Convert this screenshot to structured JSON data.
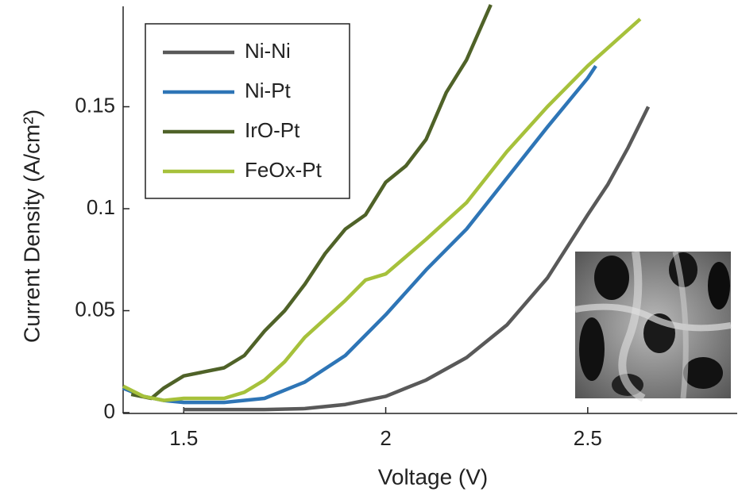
{
  "chart_data": {
    "type": "line",
    "xlabel": "Voltage (V)",
    "ylabel": "Current Density (A/cm²)",
    "xlim": [
      1.35,
      2.87
    ],
    "ylim": [
      0,
      0.2
    ],
    "xticks": [
      1.5,
      2,
      2.5
    ],
    "yticks": [
      0,
      0.05,
      0.1,
      0.15
    ],
    "legend": "upper left",
    "series": [
      {
        "name": "Ni-Ni",
        "color": "#595959",
        "x": [
          1.5,
          1.6,
          1.7,
          1.8,
          1.9,
          2.0,
          2.1,
          2.2,
          2.3,
          2.4,
          2.5,
          2.55,
          2.6,
          2.65
        ],
        "values": [
          0.0015,
          0.0015,
          0.0015,
          0.002,
          0.004,
          0.008,
          0.016,
          0.027,
          0.043,
          0.066,
          0.097,
          0.112,
          0.13,
          0.15
        ]
      },
      {
        "name": "Ni-Pt",
        "color": "#2e75b6",
        "x": [
          1.35,
          1.4,
          1.45,
          1.5,
          1.6,
          1.7,
          1.8,
          1.9,
          2.0,
          2.1,
          2.2,
          2.3,
          2.4,
          2.5,
          2.52
        ],
        "values": [
          0.012,
          0.008,
          0.006,
          0.005,
          0.005,
          0.007,
          0.015,
          0.028,
          0.048,
          0.07,
          0.09,
          0.115,
          0.14,
          0.164,
          0.17
        ]
      },
      {
        "name": "IrO-Pt",
        "color": "#4f6228",
        "x": [
          1.37,
          1.42,
          1.45,
          1.5,
          1.55,
          1.6,
          1.65,
          1.7,
          1.75,
          1.8,
          1.85,
          1.9,
          1.95,
          2.0,
          2.05,
          2.1,
          2.15,
          2.2,
          2.26
        ],
        "values": [
          0.009,
          0.007,
          0.012,
          0.018,
          0.02,
          0.022,
          0.028,
          0.04,
          0.05,
          0.063,
          0.078,
          0.09,
          0.097,
          0.113,
          0.121,
          0.134,
          0.157,
          0.173,
          0.2
        ]
      },
      {
        "name": "FeOx-Pt",
        "color": "#a6c13b",
        "x": [
          1.35,
          1.4,
          1.45,
          1.5,
          1.6,
          1.65,
          1.7,
          1.75,
          1.8,
          1.85,
          1.9,
          1.95,
          2.0,
          2.1,
          2.2,
          2.3,
          2.4,
          2.5,
          2.63
        ],
        "values": [
          0.013,
          0.008,
          0.006,
          0.007,
          0.007,
          0.01,
          0.016,
          0.025,
          0.037,
          0.046,
          0.055,
          0.065,
          0.068,
          0.085,
          0.103,
          0.128,
          0.15,
          0.17,
          0.193
        ]
      }
    ]
  }
}
